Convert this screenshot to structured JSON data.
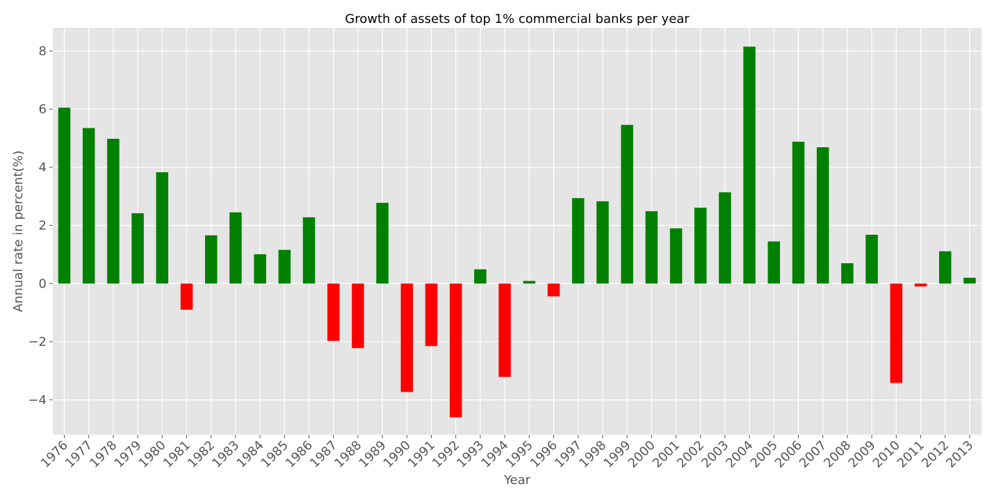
{
  "chart_data": {
    "type": "bar",
    "title": "Growth of assets of top 1% commercial banks per year",
    "xlabel": "Year",
    "ylabel": "Annual rate in percent(%)",
    "ylim": [
      -5.2,
      8.8
    ],
    "yticks": [
      -4,
      -2,
      0,
      2,
      4,
      6,
      8
    ],
    "ytick_labels": [
      "−4",
      "−2",
      "0",
      "2",
      "4",
      "6",
      "8"
    ],
    "grid": true,
    "legend": "none",
    "colors": {
      "positive": "#008000",
      "negative": "#ff0000",
      "plot_background": "#e5e5e5",
      "grid": "#ffffff"
    },
    "categories": [
      "1976",
      "1977",
      "1978",
      "1979",
      "1980",
      "1981",
      "1982",
      "1983",
      "1984",
      "1985",
      "1986",
      "1987",
      "1988",
      "1989",
      "1990",
      "1991",
      "1992",
      "1993",
      "1994",
      "1995",
      "1996",
      "1997",
      "1998",
      "1999",
      "2000",
      "2001",
      "2002",
      "2003",
      "2004",
      "2005",
      "2006",
      "2007",
      "2008",
      "2009",
      "2010",
      "2011",
      "2012",
      "2013"
    ],
    "values": [
      6.05,
      5.35,
      4.98,
      2.42,
      3.83,
      -0.9,
      1.66,
      2.45,
      1.01,
      1.16,
      2.28,
      -1.97,
      -2.22,
      2.78,
      -3.73,
      -2.15,
      -4.6,
      0.49,
      -3.21,
      0.09,
      -0.44,
      2.94,
      2.83,
      5.46,
      2.49,
      1.9,
      2.61,
      3.14,
      8.15,
      1.45,
      4.88,
      4.69,
      0.7,
      1.68,
      -3.42,
      -0.1,
      1.11,
      0.2
    ]
  }
}
